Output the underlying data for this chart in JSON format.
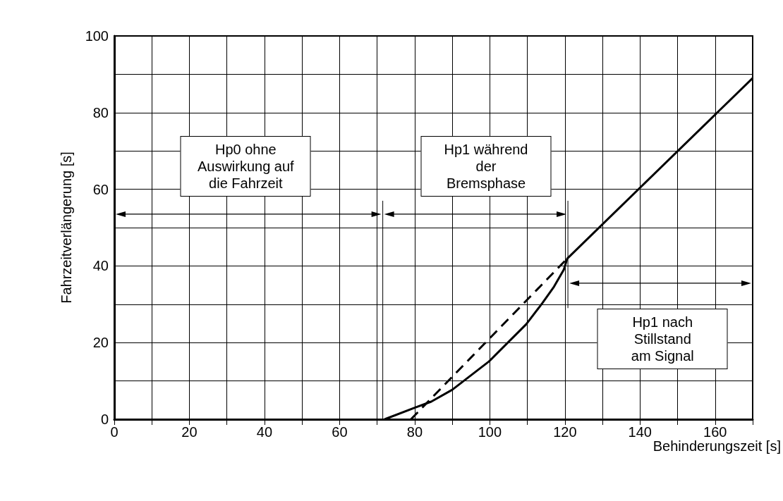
{
  "chart_data": {
    "type": "line",
    "xlabel": "Behinderungszeit [s]",
    "ylabel": "Fahrzeitverlängerung [s]",
    "xlim": [
      0,
      170
    ],
    "ylim": [
      0,
      100
    ],
    "xticks": [
      0,
      {
        "value": 10,
        "label": null
      },
      20,
      {
        "value": 30,
        "label": null
      },
      40,
      {
        "value": 50,
        "label": null
      },
      60,
      {
        "value": 70,
        "label": null
      },
      80,
      {
        "value": 90,
        "label": null
      },
      100,
      {
        "value": 110,
        "label": null
      },
      120,
      {
        "value": 130,
        "label": null
      },
      140,
      {
        "value": 150,
        "label": null
      },
      160,
      {
        "value": 170,
        "label": null
      }
    ],
    "yticks": [
      0,
      {
        "value": 10,
        "label": null
      },
      20,
      {
        "value": 30,
        "label": null
      },
      40,
      {
        "value": 50,
        "label": null
      },
      60,
      {
        "value": 70,
        "label": null
      },
      80,
      {
        "value": 90,
        "label": null
      },
      100
    ],
    "grid": true,
    "marker": "none",
    "series": [
      {
        "color": "#000000",
        "line_style": "solid",
        "x": [
          72,
          80,
          84.4,
          90,
          99.8,
          109.7,
          114,
          117.1,
          119.7,
          120.6,
          170
        ],
        "values": [
          0,
          3,
          4.6,
          7.7,
          15.1,
          24.8,
          30.3,
          34.6,
          39,
          41.9,
          89
        ]
      },
      {
        "color": "#000000",
        "line_style": "dashed",
        "x": [
          79,
          120.6
        ],
        "values": [
          0,
          41.9
        ]
      }
    ],
    "ref_lines": [
      {
        "axis": "x",
        "value": 71.5,
        "label": null,
        "color": "#000000"
      },
      {
        "axis": "x",
        "value": 120.8,
        "label": null,
        "color": "#000000"
      }
    ],
    "annotations": [
      "Hp0 ohne Auswirkung auf die Fahrzeit",
      "Hp1 während der Bremsphase",
      "Hp1 nach Stillstand am Signal"
    ]
  }
}
